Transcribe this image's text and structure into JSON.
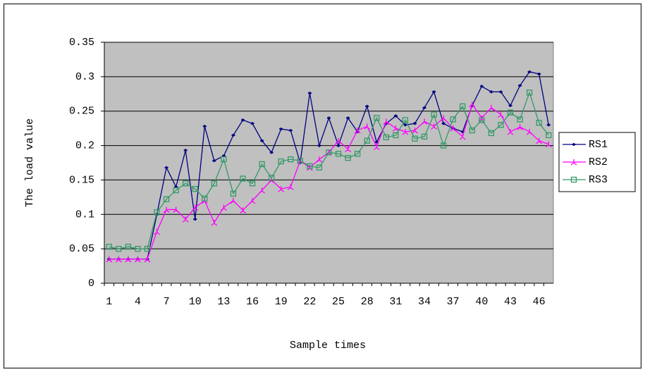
{
  "chart_data": {
    "type": "line",
    "y_label": "The load value",
    "x_label": "Sample times",
    "categories": [
      1,
      null,
      null,
      4,
      null,
      null,
      7,
      null,
      null,
      10,
      null,
      null,
      13,
      null,
      null,
      16,
      null,
      null,
      19,
      null,
      null,
      22,
      null,
      null,
      25,
      null,
      null,
      28,
      null,
      null,
      31,
      null,
      null,
      34,
      null,
      null,
      37,
      null,
      null,
      40,
      null,
      null,
      43,
      null,
      null,
      46,
      null
    ],
    "series": [
      {
        "name": "RS1",
        "color": "#000080",
        "marker": "dash",
        "values": [
          0.035,
          0.035,
          0.035,
          0.035,
          0.035,
          0.1,
          0.168,
          0.14,
          0.193,
          0.093,
          0.228,
          0.178,
          0.185,
          0.215,
          0.237,
          0.232,
          0.207,
          0.19,
          0.224,
          0.222,
          0.175,
          0.276,
          0.2,
          0.24,
          0.2,
          0.24,
          0.22,
          0.257,
          0.205,
          0.232,
          0.243,
          0.23,
          0.232,
          0.255,
          0.278,
          0.232,
          0.225,
          0.22,
          0.258,
          0.286,
          0.278,
          0.278,
          0.258,
          0.287,
          0.307,
          0.304,
          0.23
        ]
      },
      {
        "name": "RS2",
        "color": "#ff00ff",
        "marker": "star",
        "values": [
          0.035,
          0.035,
          0.035,
          0.035,
          0.035,
          0.075,
          0.107,
          0.107,
          0.093,
          0.11,
          0.12,
          0.088,
          0.11,
          0.12,
          0.106,
          0.12,
          0.135,
          0.15,
          0.137,
          0.14,
          0.178,
          0.168,
          0.18,
          0.19,
          0.207,
          0.195,
          0.222,
          0.228,
          0.198,
          0.235,
          0.225,
          0.22,
          0.222,
          0.235,
          0.228,
          0.24,
          0.225,
          0.213,
          0.26,
          0.24,
          0.255,
          0.245,
          0.22,
          0.227,
          0.22,
          0.207,
          0.202
        ]
      },
      {
        "name": "RS3",
        "color": "#339966",
        "marker": "square",
        "values": [
          0.053,
          0.05,
          0.053,
          0.05,
          0.05,
          0.103,
          0.122,
          0.135,
          0.145,
          0.137,
          0.123,
          0.145,
          0.18,
          0.13,
          0.152,
          0.145,
          0.173,
          0.153,
          0.177,
          0.18,
          0.178,
          0.17,
          0.168,
          0.19,
          0.188,
          0.182,
          0.188,
          0.207,
          0.24,
          0.212,
          0.215,
          0.237,
          0.21,
          0.213,
          0.245,
          0.2,
          0.238,
          0.257,
          0.222,
          0.237,
          0.218,
          0.23,
          0.248,
          0.238,
          0.277,
          0.233,
          0.215
        ]
      }
    ],
    "ylim": [
      0,
      0.35
    ],
    "yticks": [
      0,
      0.05,
      0.1,
      0.15,
      0.2,
      0.25,
      0.3,
      0.35
    ],
    "grid": true,
    "plot_background": "#c0c0c0",
    "legend": "right"
  }
}
